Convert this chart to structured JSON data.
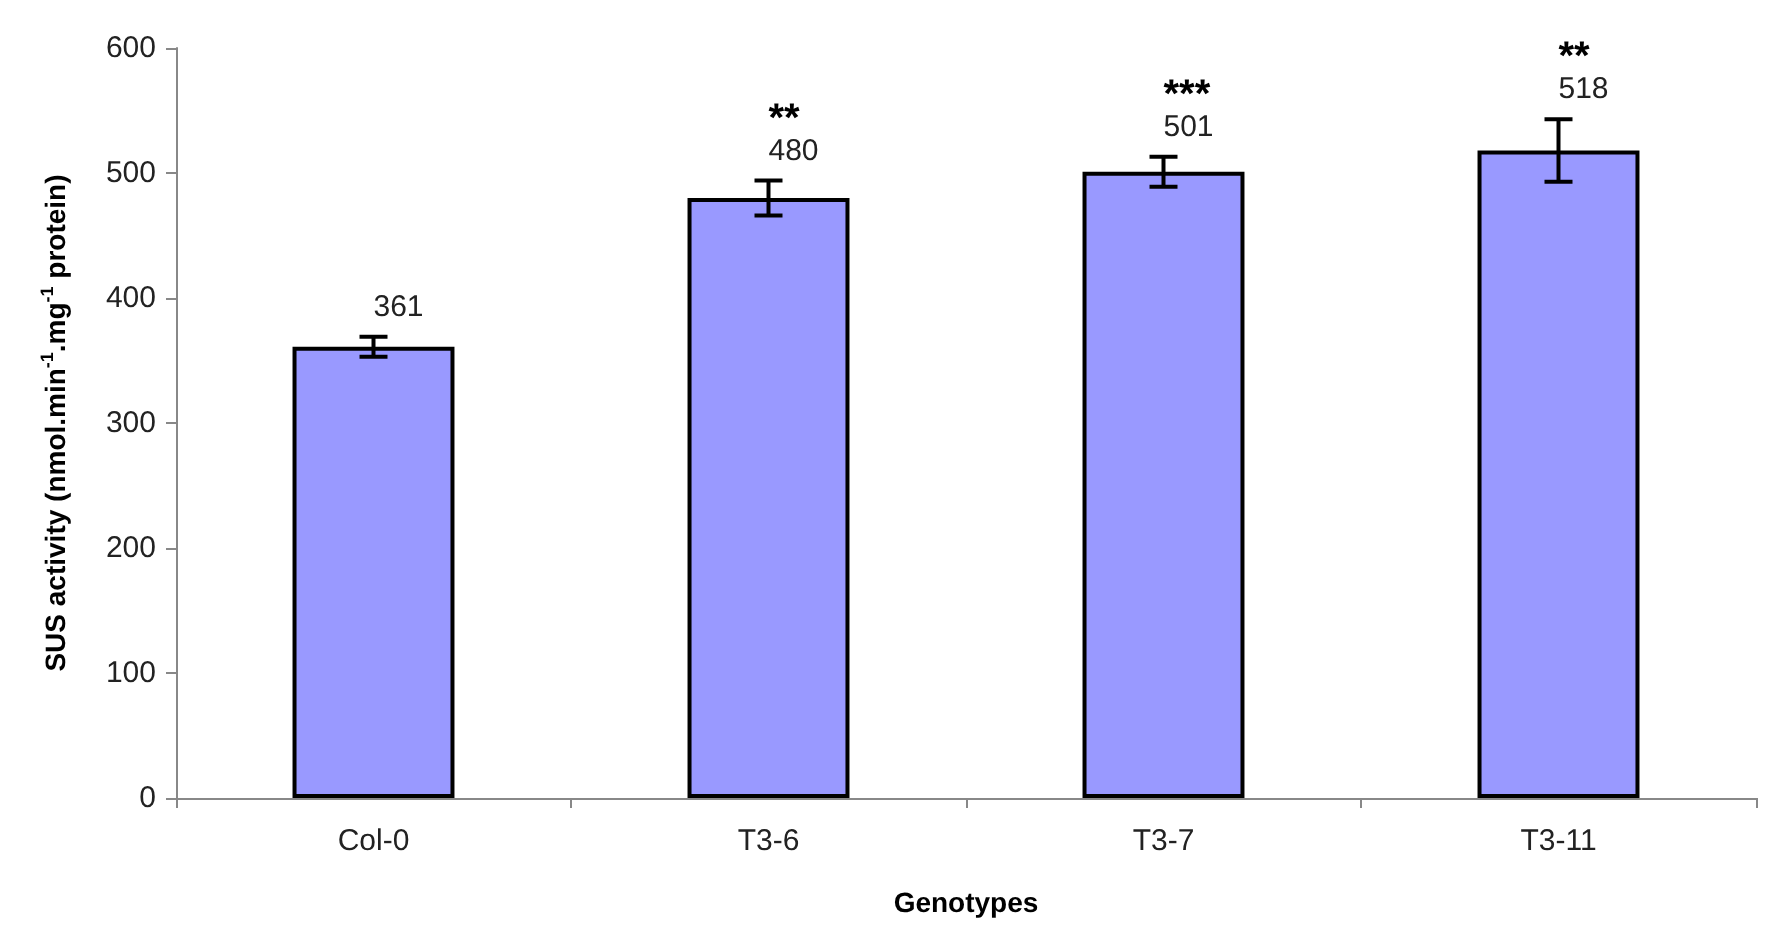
{
  "chart_data": {
    "type": "bar",
    "xlabel": "Genotypes",
    "ylabel": "SUS activity (nmol.min$^{-1}$.mg$^{-1}$ protein)",
    "categories": [
      "Col-0",
      "T3-6",
      "T3-7",
      "T3-11"
    ],
    "values": [
      361,
      480,
      501,
      518
    ],
    "errors": [
      8,
      14,
      12,
      25
    ],
    "color": "#9999ff",
    "ylim": [
      0,
      600
    ],
    "yticks": [
      0,
      100,
      200,
      300,
      400,
      500,
      600
    ],
    "grid": false,
    "data_labels": true,
    "annotations": [
      "**",
      "***",
      "**"
    ]
  }
}
